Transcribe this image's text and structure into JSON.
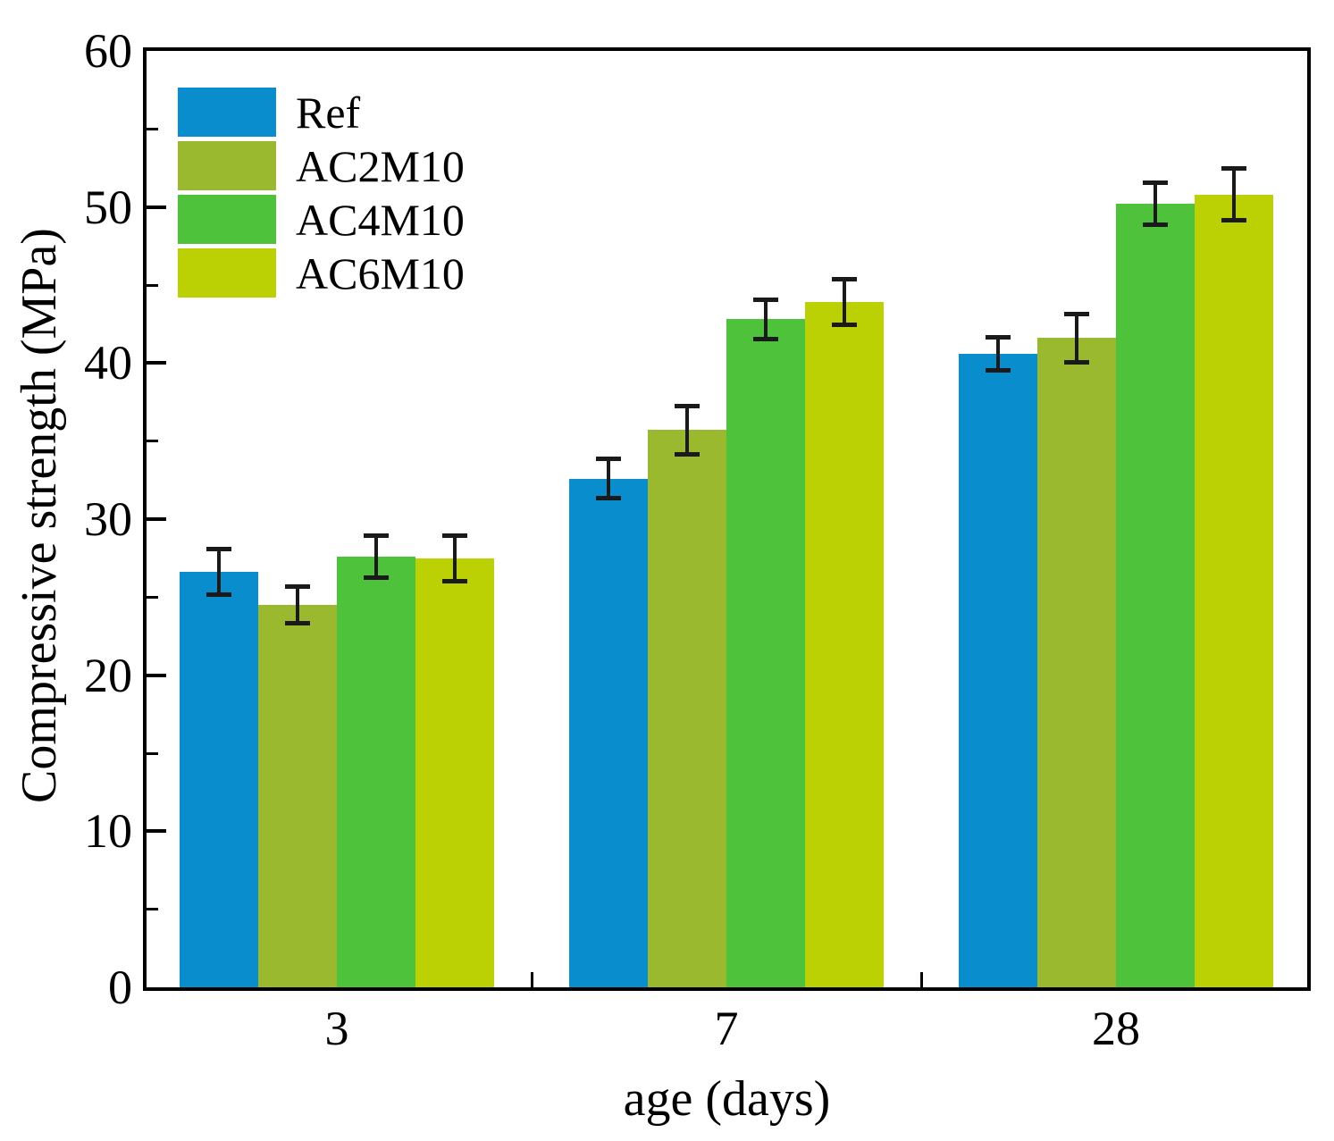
{
  "chart_data": {
    "type": "bar",
    "title": "",
    "xlabel": "age (days)",
    "ylabel": "Compressive strength (MPa)",
    "categories": [
      "3",
      "7",
      "28"
    ],
    "series": [
      {
        "name": "Ref",
        "color": "#0a8dcc",
        "values": [
          26.6,
          32.6,
          40.6
        ],
        "errors": [
          1.6,
          1.4,
          1.2
        ]
      },
      {
        "name": "AC2M10",
        "color": "#9ab92f",
        "values": [
          24.5,
          35.7,
          41.6
        ],
        "errors": [
          1.3,
          1.7,
          1.7
        ]
      },
      {
        "name": "AC4M10",
        "color": "#4ec23a",
        "values": [
          27.6,
          42.8,
          50.2
        ],
        "errors": [
          1.5,
          1.4,
          1.5
        ]
      },
      {
        "name": "AC6M10",
        "color": "#bcd104",
        "values": [
          27.5,
          43.9,
          50.8
        ],
        "errors": [
          1.6,
          1.6,
          1.8
        ]
      }
    ],
    "ylim": [
      0,
      60
    ],
    "yticks_major": [
      0,
      10,
      20,
      30,
      40,
      50,
      60
    ],
    "yticks_minor": [
      5,
      15,
      25,
      35,
      45,
      55
    ],
    "grid": "off",
    "legend_position": "top-left-inside",
    "error_bar_color": "#1a1a1a",
    "axis_color": "#000000"
  }
}
